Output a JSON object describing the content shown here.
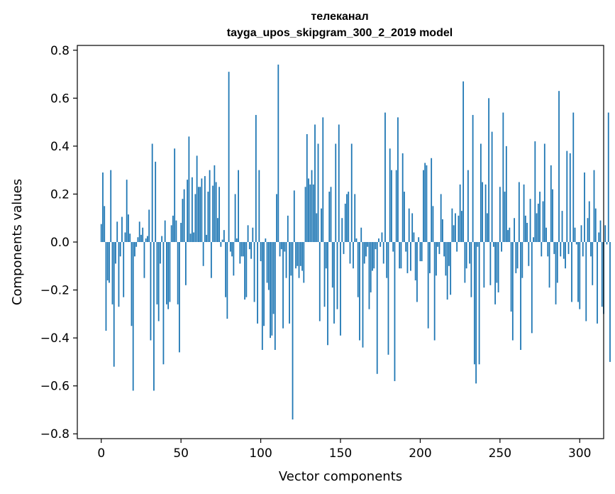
{
  "chart_data": {
    "type": "bar",
    "title": "телеканал",
    "subtitle": "tayga_upos_skipgram_300_2_2019 model",
    "xlabel": "Vector components",
    "ylabel": "Components values",
    "xlim": [
      -15,
      315
    ],
    "ylim": [
      -0.82,
      0.82
    ],
    "xticks": [
      0,
      50,
      100,
      150,
      200,
      250,
      300
    ],
    "xtick_labels": [
      "0",
      "50",
      "100",
      "150",
      "200",
      "250",
      "300"
    ],
    "yticks": [
      -0.8,
      -0.6,
      -0.4,
      -0.2,
      0.0,
      0.2,
      0.4,
      0.6,
      0.8
    ],
    "ytick_labels": [
      "−0.8",
      "−0.6",
      "−0.4",
      "−0.2",
      "0.0",
      "0.2",
      "0.4",
      "0.6",
      "0.8"
    ],
    "bar_color": "#1f77b4",
    "series": [
      {
        "name": "телеканал",
        "values": [
          0.075,
          0.29,
          0.15,
          -0.37,
          -0.16,
          -0.17,
          0.3,
          -0.26,
          -0.52,
          -0.09,
          0.085,
          -0.27,
          -0.06,
          0.105,
          -0.23,
          0.04,
          0.26,
          0.115,
          0.035,
          -0.35,
          -0.62,
          -0.06,
          -0.02,
          0.02,
          0.085,
          0.03,
          0.06,
          -0.15,
          0.015,
          0.025,
          0.135,
          -0.41,
          0.41,
          -0.62,
          0.335,
          -0.26,
          -0.33,
          -0.09,
          0.025,
          -0.51,
          0.09,
          -0.26,
          -0.28,
          -0.25,
          0.07,
          0.11,
          0.39,
          0.09,
          -0.26,
          -0.46,
          0.08,
          0.18,
          0.22,
          -0.18,
          0.26,
          0.44,
          0.035,
          0.27,
          0.04,
          0.2,
          0.36,
          0.23,
          0.23,
          0.265,
          -0.1,
          0.275,
          0.03,
          0.21,
          0.3,
          -0.15,
          0.235,
          0.32,
          0.25,
          0.1,
          0.23,
          -0.02,
          0.01,
          0.05,
          -0.23,
          -0.32,
          0.71,
          -0.04,
          -0.06,
          -0.14,
          0.2,
          0.015,
          0.3,
          -0.09,
          -0.06,
          -0.06,
          -0.24,
          -0.23,
          0.07,
          -0.03,
          -0.07,
          0.06,
          -0.25,
          0.53,
          -0.34,
          0.3,
          -0.08,
          -0.45,
          -0.35,
          0.015,
          -0.17,
          -0.2,
          -0.4,
          -0.39,
          -0.3,
          -0.45,
          0.2,
          0.74,
          -0.06,
          -0.03,
          -0.36,
          -0.04,
          -0.15,
          0.11,
          -0.34,
          -0.14,
          -0.74,
          0.215,
          -0.11,
          -0.1,
          -0.15,
          -0.1,
          -0.12,
          -0.17,
          0.23,
          0.45,
          0.265,
          0.24,
          0.3,
          0.24,
          0.49,
          0.12,
          0.41,
          -0.33,
          0.14,
          0.52,
          -0.27,
          -0.11,
          -0.43,
          0.21,
          0.23,
          -0.19,
          -0.34,
          0.41,
          -0.28,
          0.49,
          -0.39,
          0.1,
          -0.05,
          0.16,
          0.2,
          0.21,
          -0.09,
          0.41,
          -0.11,
          0.2,
          0.015,
          -0.23,
          -0.41,
          0.06,
          -0.44,
          -0.09,
          -0.06,
          -0.02,
          -0.28,
          -0.21,
          -0.12,
          -0.11,
          -0.03,
          -0.55,
          0.015,
          -0.02,
          0.04,
          -0.09,
          0.54,
          -0.15,
          -0.47,
          0.39,
          0.3,
          -0.04,
          -0.58,
          0.3,
          0.52,
          -0.11,
          -0.11,
          0.37,
          0.21,
          -0.04,
          -0.13,
          0.14,
          -0.12,
          0.12,
          0.04,
          -0.16,
          -0.25,
          0.02,
          -0.08,
          -0.08,
          0.3,
          0.33,
          0.32,
          -0.36,
          -0.13,
          0.35,
          0.15,
          -0.41,
          -0.14,
          -0.02,
          -0.05,
          0.2,
          0.095,
          -0.06,
          -0.14,
          -0.24,
          -0.1,
          -0.22,
          0.14,
          0.07,
          0.12,
          -0.04,
          0.11,
          0.24,
          0.13,
          0.67,
          -0.17,
          -0.11,
          0.3,
          -0.09,
          -0.23,
          0.53,
          -0.51,
          -0.59,
          -0.02,
          -0.51,
          0.41,
          0.25,
          -0.19,
          0.24,
          0.12,
          0.6,
          -0.18,
          0.46,
          -0.02,
          -0.26,
          -0.17,
          -0.21,
          0.23,
          -0.04,
          0.54,
          0.21,
          0.4,
          0.05,
          0.06,
          -0.29,
          -0.41,
          0.1,
          -0.13,
          -0.11,
          0.25,
          -0.45,
          -0.15,
          0.24,
          0.11,
          0.08,
          -0.1,
          0.18,
          -0.38,
          0.02,
          0.42,
          0.12,
          0.16,
          0.21,
          -0.06,
          0.17,
          0.41,
          0.06,
          -0.06,
          -0.19,
          0.32,
          0.22,
          -0.05,
          -0.26,
          -0.17,
          0.63,
          -0.06,
          0.13,
          -0.07,
          -0.11,
          0.38,
          -0.05,
          0.37,
          -0.25,
          0.54,
          0.06,
          -0.01,
          -0.25,
          -0.28,
          0.07,
          -0.06,
          0.29,
          -0.33,
          0.1,
          0.17,
          -0.06,
          -0.18,
          0.3,
          0.14,
          -0.34,
          0.04,
          0.09,
          -0.27,
          -0.3,
          0.07,
          -0.01,
          0.54,
          -0.5
        ]
      }
    ]
  }
}
